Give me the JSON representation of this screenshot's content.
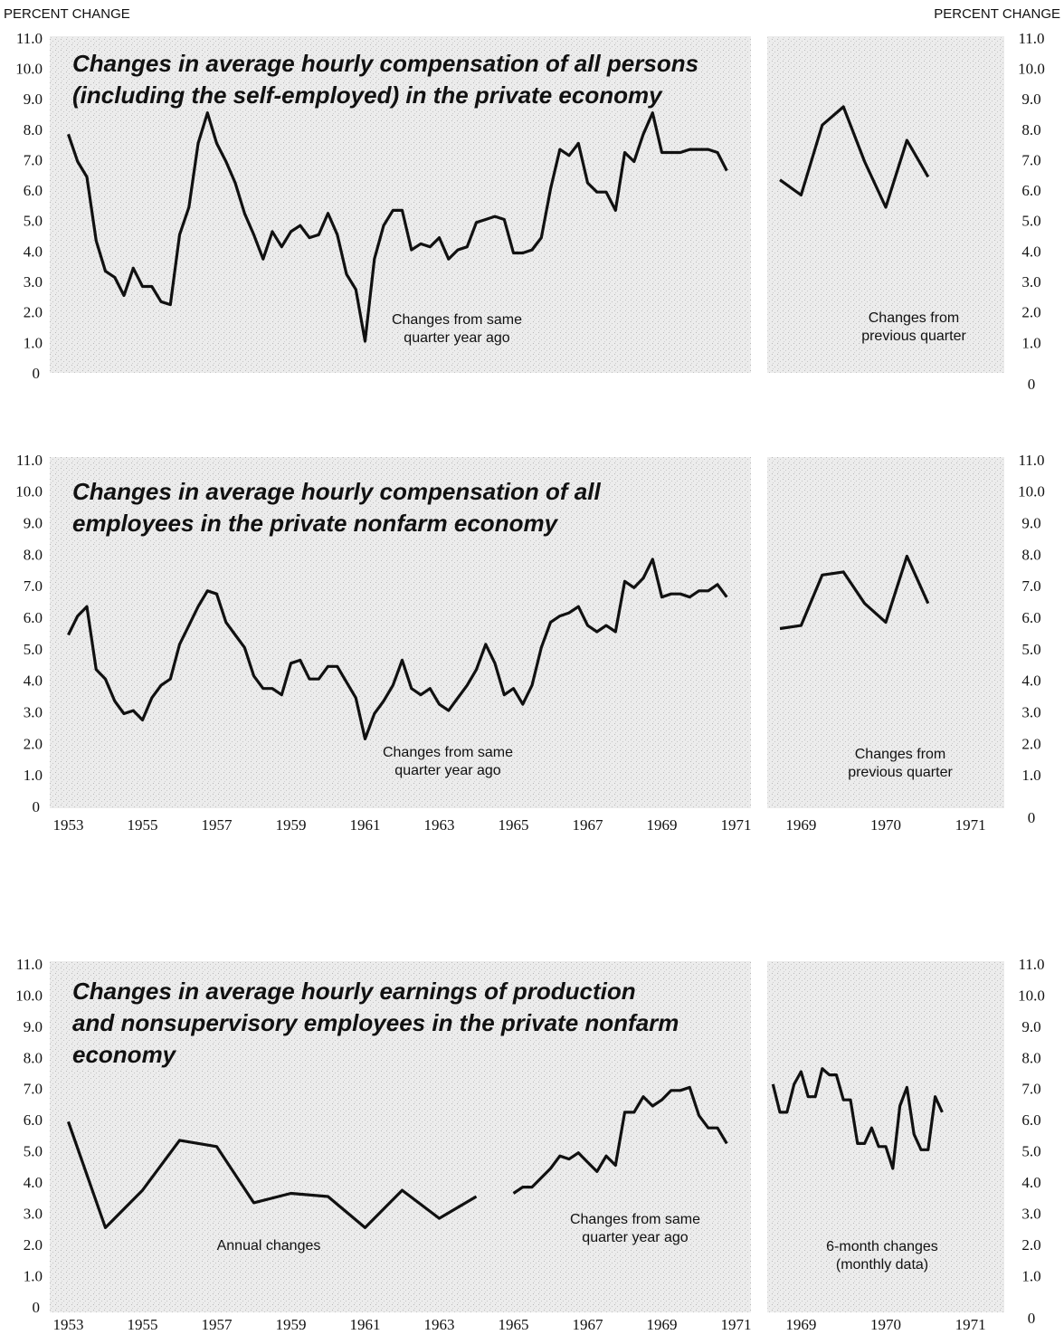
{
  "y_label": "PERCENT CHANGE",
  "y2_label": "PERCENT CHANGE",
  "chart_data": [
    {
      "type": "line",
      "title": [
        "Changes in average hourly compensation of all persons",
        "(including the self-employed)  in the private economy"
      ],
      "ylim": [
        0,
        11
      ],
      "yticks": [
        0,
        {
          "value": 1,
          "label": "1.0"
        },
        {
          "value": 2,
          "label": "2.0"
        },
        {
          "value": 3,
          "label": "3.0"
        },
        {
          "value": 4,
          "label": "4.0"
        },
        {
          "value": 5,
          "label": "5.0"
        },
        {
          "value": 6,
          "label": "6.0"
        },
        {
          "value": 7,
          "label": "7.0"
        },
        {
          "value": 8,
          "label": "8.0"
        },
        {
          "value": 9,
          "label": "9.0"
        },
        {
          "value": 10,
          "label": "10.0"
        },
        {
          "value": 11,
          "label": "11.0"
        }
      ],
      "panels": [
        {
          "xlim": [
            1952.5,
            1971.5
          ],
          "series": [
            {
              "annotation": [
                "Changes from same",
                "quarter year ago"
              ],
              "color": "#111111",
              "x": [
                1953,
                1953.25,
                1953.5,
                1953.75,
                1954,
                1954.25,
                1954.5,
                1954.75,
                1955,
                1955.25,
                1955.5,
                1955.75,
                1956,
                1956.25,
                1956.5,
                1956.75,
                1957,
                1957.25,
                1957.5,
                1957.75,
                1958,
                1958.25,
                1958.5,
                1958.75,
                1959,
                1959.25,
                1959.5,
                1959.75,
                1960,
                1960.25,
                1960.5,
                1960.75,
                1961,
                1961.25,
                1961.5,
                1961.75,
                1962,
                1962.25,
                1962.5,
                1962.75,
                1963,
                1963.25,
                1963.5,
                1963.75,
                1964,
                1964.25,
                1964.5,
                1964.75,
                1965,
                1965.25,
                1965.5,
                1965.75,
                1966,
                1966.25,
                1966.5,
                1966.75,
                1967,
                1967.25,
                1967.5,
                1967.75,
                1968,
                1968.25,
                1968.5,
                1968.75,
                1969,
                1969.25,
                1969.5,
                1969.75,
                1970,
                1970.25,
                1970.5,
                1970.75
              ],
              "values": [
                7.9,
                7.0,
                6.5,
                4.4,
                3.4,
                3.2,
                2.6,
                3.5,
                2.9,
                2.9,
                2.4,
                2.3,
                4.6,
                5.5,
                7.6,
                8.6,
                7.6,
                7.0,
                6.3,
                5.3,
                4.6,
                3.8,
                4.7,
                4.2,
                4.7,
                4.9,
                4.5,
                4.6,
                5.3,
                4.6,
                3.3,
                2.8,
                1.1,
                3.8,
                4.9,
                5.4,
                5.4,
                4.1,
                4.3,
                4.2,
                4.5,
                3.8,
                4.1,
                4.2,
                5.0,
                5.1,
                5.2,
                5.1,
                4.0,
                4.0,
                4.1,
                4.5,
                6.1,
                7.4,
                7.2,
                7.6,
                6.3,
                6.0,
                6.0,
                5.4,
                7.3,
                7.0,
                7.9,
                8.6,
                7.3,
                7.3,
                7.3,
                7.4,
                7.4,
                7.4,
                7.3,
                6.7
              ]
            }
          ]
        },
        {
          "xlim": [
            1968.6,
            1971.4
          ],
          "series": [
            {
              "annotation": [
                "Changes from",
                "previous quarter"
              ],
              "color": "#111111",
              "x": [
                1968.75,
                1969,
                1969.25,
                1969.5,
                1969.75,
                1970,
                1970.25,
                1970.5
              ],
              "values": [
                6.4,
                5.9,
                8.2,
                8.8,
                7.0,
                5.5,
                7.7,
                6.5
              ]
            }
          ]
        }
      ]
    },
    {
      "type": "line",
      "title": [
        "Changes in average hourly compensation of all",
        "employees in the private nonfarm economy"
      ],
      "ylim": [
        0,
        11
      ],
      "yticks": [
        0,
        {
          "value": 1,
          "label": "1.0"
        },
        {
          "value": 2,
          "label": "2.0"
        },
        {
          "value": 3,
          "label": "3.0"
        },
        {
          "value": 4,
          "label": "4.0"
        },
        {
          "value": 5,
          "label": "5.0"
        },
        {
          "value": 6,
          "label": "6.0"
        },
        {
          "value": 7,
          "label": "7.0"
        },
        {
          "value": 8,
          "label": "8.0"
        },
        {
          "value": 9,
          "label": "9.0"
        },
        {
          "value": 10,
          "label": "10.0"
        },
        {
          "value": 11,
          "label": "11.0"
        }
      ],
      "panels": [
        {
          "xlim": [
            1952.5,
            1971.5
          ],
          "xticks": [
            1953,
            1955,
            1957,
            1959,
            1961,
            1963,
            1965,
            1967,
            1969,
            1971
          ],
          "series": [
            {
              "annotation": [
                "Changes from same",
                "quarter year ago"
              ],
              "color": "#111111",
              "x": [
                1953,
                1953.25,
                1953.5,
                1953.75,
                1954,
                1954.25,
                1954.5,
                1954.75,
                1955,
                1955.25,
                1955.5,
                1955.75,
                1956,
                1956.25,
                1956.5,
                1956.75,
                1957,
                1957.25,
                1957.5,
                1957.75,
                1958,
                1958.25,
                1958.5,
                1958.75,
                1959,
                1959.25,
                1959.5,
                1959.75,
                1960,
                1960.25,
                1960.5,
                1960.75,
                1961,
                1961.25,
                1961.5,
                1961.75,
                1962,
                1962.25,
                1962.5,
                1962.75,
                1963,
                1963.25,
                1963.5,
                1963.75,
                1964,
                1964.25,
                1964.5,
                1964.75,
                1965,
                1965.25,
                1965.5,
                1965.75,
                1966,
                1966.25,
                1966.5,
                1966.75,
                1967,
                1967.25,
                1967.5,
                1967.75,
                1968,
                1968.25,
                1968.5,
                1968.75,
                1969,
                1969.25,
                1969.5,
                1969.75,
                1970,
                1970.25,
                1970.5,
                1970.75
              ],
              "values": [
                5.5,
                6.1,
                6.4,
                4.4,
                4.1,
                3.4,
                3.0,
                3.1,
                2.8,
                3.5,
                3.9,
                4.1,
                5.2,
                5.8,
                6.4,
                6.9,
                6.8,
                5.9,
                5.5,
                5.1,
                4.2,
                3.8,
                3.8,
                3.6,
                4.6,
                4.7,
                4.1,
                4.1,
                4.5,
                4.5,
                4.0,
                3.5,
                2.2,
                3.0,
                3.4,
                3.9,
                4.7,
                3.8,
                3.6,
                3.8,
                3.3,
                3.1,
                3.5,
                3.9,
                4.4,
                5.2,
                4.6,
                3.6,
                3.8,
                3.3,
                3.9,
                5.1,
                5.9,
                6.1,
                6.2,
                6.4,
                5.8,
                5.6,
                5.8,
                5.6,
                7.2,
                7.0,
                7.3,
                7.9,
                6.7,
                6.8,
                6.8,
                6.7,
                6.9,
                6.9,
                7.1,
                6.7
              ]
            }
          ]
        },
        {
          "xlim": [
            1968.6,
            1971.4
          ],
          "xticks": [
            1969,
            1970,
            1971
          ],
          "series": [
            {
              "annotation": [
                "Changes from",
                "previous quarter"
              ],
              "color": "#111111",
              "x": [
                1968.75,
                1969,
                1969.25,
                1969.5,
                1969.75,
                1970,
                1970.25,
                1970.5
              ],
              "values": [
                5.7,
                5.8,
                7.4,
                7.5,
                6.5,
                5.9,
                8.0,
                6.5
              ]
            }
          ]
        }
      ]
    },
    {
      "type": "line",
      "title": [
        "Changes in average hourly earnings of production",
        "and nonsupervisory employees in the  private nonfarm",
        "economy"
      ],
      "ylim": [
        0,
        11
      ],
      "yticks": [
        0,
        {
          "value": 1,
          "label": "1.0"
        },
        {
          "value": 2,
          "label": "2.0"
        },
        {
          "value": 3,
          "label": "3.0"
        },
        {
          "value": 4,
          "label": "4.0"
        },
        {
          "value": 5,
          "label": "5.0"
        },
        {
          "value": 6,
          "label": "6.0"
        },
        {
          "value": 7,
          "label": "7.0"
        },
        {
          "value": 8,
          "label": "8.0"
        },
        {
          "value": 9,
          "label": "9.0"
        },
        {
          "value": 10,
          "label": "10.0"
        },
        {
          "value": 11,
          "label": "11.0"
        }
      ],
      "panels": [
        {
          "xlim": [
            1952.5,
            1971.5
          ],
          "xticks": [
            1953,
            1955,
            1957,
            1959,
            1961,
            1963,
            1965,
            1967,
            1969,
            1971
          ],
          "series": [
            {
              "annotation": [
                "Annual changes"
              ],
              "color": "#111111",
              "x": [
                1953,
                1954,
                1955,
                1956,
                1957,
                1958,
                1959,
                1960,
                1961,
                1962,
                1963,
                1964
              ],
              "values": [
                6.0,
                2.6,
                3.8,
                5.4,
                5.2,
                3.4,
                3.7,
                3.6,
                2.6,
                3.8,
                2.9,
                3.6
              ]
            },
            {
              "annotation": [
                "Changes from same",
                "quarter year ago"
              ],
              "color": "#111111",
              "x": [
                1965,
                1965.25,
                1965.5,
                1965.75,
                1966,
                1966.25,
                1966.5,
                1966.75,
                1967,
                1967.25,
                1967.5,
                1967.75,
                1968,
                1968.25,
                1968.5,
                1968.75,
                1969,
                1969.25,
                1969.5,
                1969.75,
                1970,
                1970.25,
                1970.5,
                1970.75
              ],
              "values": [
                3.7,
                3.9,
                3.9,
                4.2,
                4.5,
                4.9,
                4.8,
                5.0,
                4.7,
                4.4,
                4.9,
                4.6,
                6.3,
                6.3,
                6.8,
                6.5,
                6.7,
                7.0,
                7.0,
                7.1,
                6.2,
                5.8,
                5.8,
                5.3
              ]
            }
          ]
        },
        {
          "xlim": [
            1968.6,
            1971.4
          ],
          "xticks": [
            1969,
            1970,
            1971
          ],
          "series": [
            {
              "annotation": [
                "6-month changes",
                "(monthly data)"
              ],
              "color": "#111111",
              "x": [
                1968.667,
                1968.75,
                1968.833,
                1968.917,
                1969,
                1969.083,
                1969.167,
                1969.25,
                1969.333,
                1969.417,
                1969.5,
                1969.583,
                1969.667,
                1969.75,
                1969.833,
                1969.917,
                1970,
                1970.083,
                1970.167,
                1970.25,
                1970.333,
                1970.417,
                1970.5,
                1970.583,
                1970.667
              ],
              "values": [
                7.2,
                6.3,
                6.3,
                7.2,
                7.6,
                6.8,
                6.8,
                7.7,
                7.5,
                7.5,
                6.7,
                6.7,
                5.3,
                5.3,
                5.8,
                5.2,
                5.2,
                4.5,
                6.5,
                7.1,
                5.6,
                5.1,
                5.1,
                6.8,
                6.3
              ]
            }
          ]
        }
      ]
    }
  ]
}
